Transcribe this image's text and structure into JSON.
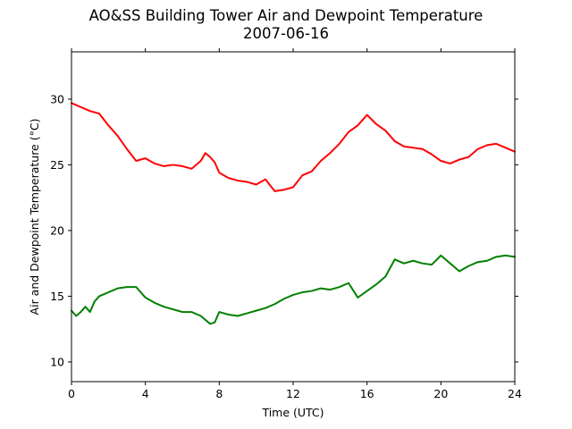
{
  "chart_data": {
    "type": "line",
    "title": "AO&SS Building Tower Air and Dewpoint Temperature",
    "subtitle": "2007-06-16",
    "xlabel": "Time (UTC)",
    "ylabel": "Air and Dewpoint Temperature (°C)",
    "xlim": [
      0,
      24
    ],
    "ylim": [
      8.5,
      33.6
    ],
    "xticks": [
      0,
      4,
      8,
      12,
      16,
      20,
      24
    ],
    "yticks": [
      10,
      15,
      20,
      25,
      30
    ],
    "grid": false,
    "legend": "none",
    "series": [
      {
        "color": "#ff0000",
        "x": [
          0,
          0.5,
          1,
          1.5,
          2,
          2.5,
          3,
          3.5,
          4,
          4.5,
          5,
          5.5,
          6,
          6.5,
          7,
          7.25,
          7.5,
          7.75,
          8,
          8.5,
          9,
          9.5,
          10,
          10.5,
          11,
          11.5,
          12,
          12.5,
          13,
          13.5,
          14,
          14.5,
          15,
          15.5,
          16,
          16.5,
          17,
          17.5,
          18,
          18.5,
          19,
          19.5,
          20,
          20.5,
          21,
          21.5,
          22,
          22.5,
          23,
          23.5,
          24
        ],
        "values": [
          29.7,
          29.4,
          29.1,
          28.9,
          28.0,
          27.2,
          26.2,
          25.3,
          25.5,
          25.1,
          24.9,
          25.0,
          24.9,
          24.7,
          25.3,
          25.9,
          25.6,
          25.2,
          24.4,
          24.0,
          23.8,
          23.7,
          23.5,
          23.9,
          23.0,
          23.1,
          23.3,
          24.2,
          24.5,
          25.3,
          25.9,
          26.6,
          27.5,
          28.0,
          28.8,
          28.1,
          27.6,
          26.8,
          26.4,
          26.3,
          26.2,
          25.8,
          25.3,
          25.1,
          25.4,
          25.6,
          26.2,
          26.5,
          26.6,
          26.3,
          26.0
        ]
      },
      {
        "color": "#008000",
        "x": [
          0,
          0.25,
          0.5,
          0.75,
          1,
          1.25,
          1.5,
          2,
          2.5,
          3,
          3.5,
          4,
          4.5,
          5,
          5.5,
          6,
          6.5,
          7,
          7.5,
          7.75,
          8,
          8.5,
          9,
          9.5,
          10,
          10.5,
          11,
          11.5,
          12,
          12.5,
          13,
          13.5,
          14,
          14.5,
          15,
          15.5,
          16,
          16.5,
          17,
          17.5,
          18,
          18.5,
          19,
          19.5,
          20,
          20.5,
          21,
          21.5,
          22,
          22.5,
          23,
          23.5,
          24
        ],
        "values": [
          13.9,
          13.5,
          13.8,
          14.2,
          13.8,
          14.6,
          15.0,
          15.3,
          15.6,
          15.7,
          15.7,
          14.9,
          14.5,
          14.2,
          14.0,
          13.8,
          13.8,
          13.5,
          12.9,
          13.0,
          13.8,
          13.6,
          13.5,
          13.7,
          13.9,
          14.1,
          14.4,
          14.8,
          15.1,
          15.3,
          15.4,
          15.6,
          15.5,
          15.7,
          16.0,
          14.9,
          15.4,
          15.9,
          16.5,
          17.8,
          17.5,
          17.7,
          17.5,
          17.4,
          18.1,
          17.5,
          16.9,
          17.3,
          17.6,
          17.7,
          18.0,
          18.1,
          18.0
        ]
      }
    ]
  }
}
